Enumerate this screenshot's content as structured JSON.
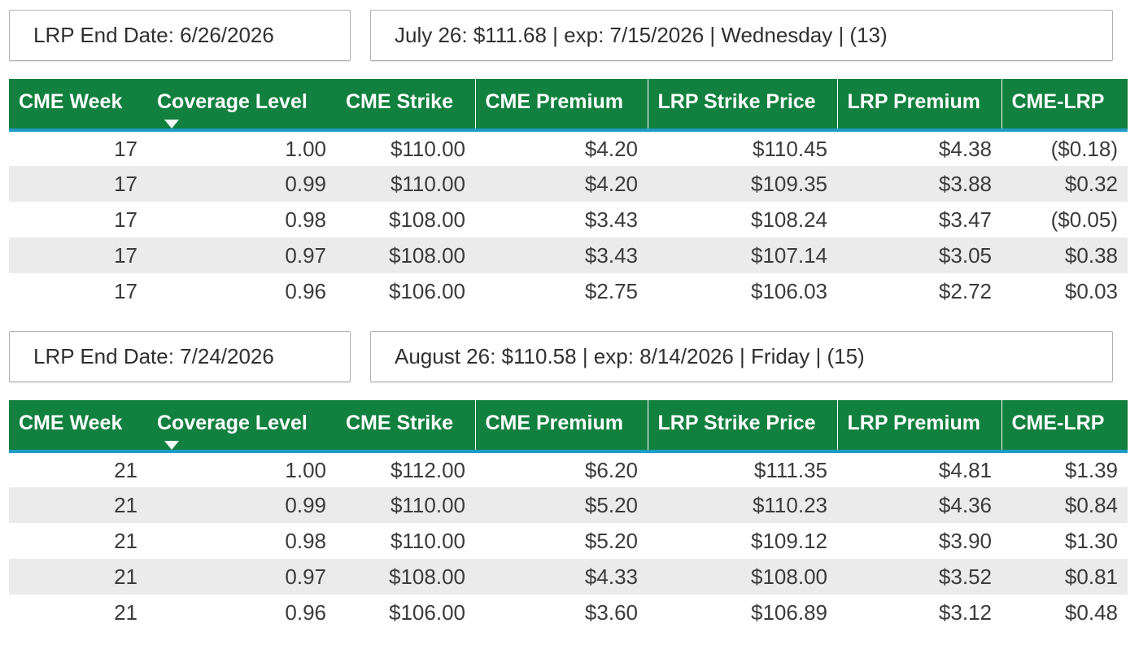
{
  "theme": {
    "header_green": "#12803E",
    "header_text_color": "#ffffff",
    "accent_underline_blue": "#1E9CC8",
    "row_alternate_gray": "#EBEBEB",
    "body_text_color": "#3B3B3B",
    "card_border_gray": "#B0B0B0"
  },
  "columns": {
    "cme_week": "CME Week",
    "coverage_level": "Coverage Level",
    "cme_strike": "CME Strike",
    "cme_premium": "CME Premium",
    "lrp_strike_price": "LRP Strike Price",
    "lrp_premium": "LRP Premium",
    "cme_lrp": "CME-LRP"
  },
  "sort": {
    "column": "Coverage Level",
    "direction": "descending"
  },
  "sections": [
    {
      "lrp_end_date_label": "LRP End Date: 6/26/2026",
      "contract_summary": "July 26: $111.68 | exp: 7/15/2026 | Wednesday | (13)",
      "rows": [
        [
          "17",
          "1.00",
          "$110.00",
          "$4.20",
          "$110.45",
          "$4.38",
          "($0.18)"
        ],
        [
          "17",
          "0.99",
          "$110.00",
          "$4.20",
          "$109.35",
          "$3.88",
          "$0.32"
        ],
        [
          "17",
          "0.98",
          "$108.00",
          "$3.43",
          "$108.24",
          "$3.47",
          "($0.05)"
        ],
        [
          "17",
          "0.97",
          "$108.00",
          "$3.43",
          "$107.14",
          "$3.05",
          "$0.38"
        ],
        [
          "17",
          "0.96",
          "$106.00",
          "$2.75",
          "$106.03",
          "$2.72",
          "$0.03"
        ]
      ]
    },
    {
      "lrp_end_date_label": "LRP End Date: 7/24/2026",
      "contract_summary": "August 26: $110.58 | exp: 8/14/2026 | Friday | (15)",
      "rows": [
        [
          "21",
          "1.00",
          "$112.00",
          "$6.20",
          "$111.35",
          "$4.81",
          "$1.39"
        ],
        [
          "21",
          "0.99",
          "$110.00",
          "$5.20",
          "$110.23",
          "$4.36",
          "$0.84"
        ],
        [
          "21",
          "0.98",
          "$110.00",
          "$5.20",
          "$109.12",
          "$3.90",
          "$1.30"
        ],
        [
          "21",
          "0.97",
          "$108.00",
          "$4.33",
          "$108.00",
          "$3.52",
          "$0.81"
        ],
        [
          "21",
          "0.96",
          "$106.00",
          "$3.60",
          "$106.89",
          "$3.12",
          "$0.48"
        ]
      ]
    }
  ]
}
